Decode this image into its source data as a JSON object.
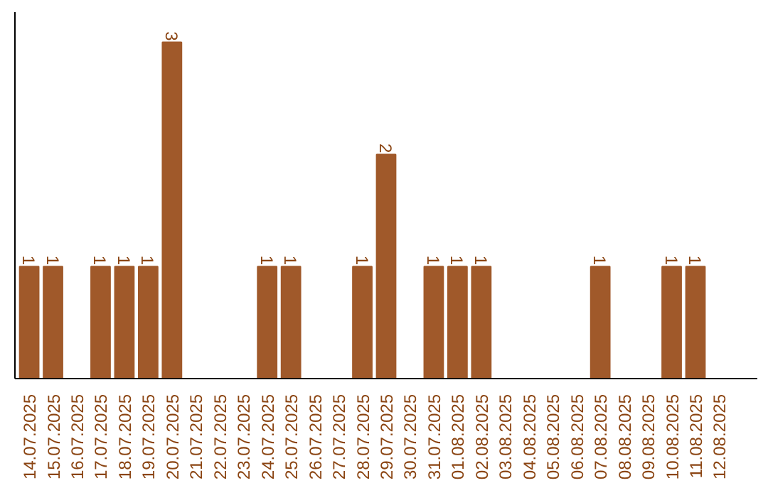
{
  "chart_data": {
    "type": "bar",
    "categories": [
      "14.07.2025",
      "15.07.2025",
      "16.07.2025",
      "17.07.2025",
      "18.07.2025",
      "19.07.2025",
      "20.07.2025",
      "21.07.2025",
      "22.07.2025",
      "23.07.2025",
      "24.07.2025",
      "25.07.2025",
      "26.07.2025",
      "27.07.2025",
      "28.07.2025",
      "29.07.2025",
      "30.07.2025",
      "31.07.2025",
      "01.08.2025",
      "02.08.2025",
      "03.08.2025",
      "04.08.2025",
      "05.08.2025",
      "06.08.2025",
      "07.08.2025",
      "08.08.2025",
      "09.08.2025",
      "10.08.2025",
      "11.08.2025",
      "12.08.2025"
    ],
    "values": [
      1,
      1,
      0,
      1,
      1,
      1,
      3,
      0,
      0,
      0,
      1,
      1,
      0,
      0,
      1,
      2,
      0,
      1,
      1,
      1,
      0,
      0,
      0,
      0,
      1,
      0,
      0,
      1,
      1,
      0
    ],
    "value_labels": [
      "1",
      "1",
      null,
      "1",
      "1",
      "1",
      "3",
      null,
      null,
      null,
      "1",
      "1",
      null,
      null,
      "1",
      "2",
      null,
      "1",
      "1",
      "1",
      null,
      null,
      null,
      null,
      "1",
      null,
      null,
      "1",
      "1",
      null
    ],
    "color": "#a0592a",
    "tick_labels": "x",
    "grid": false
  }
}
